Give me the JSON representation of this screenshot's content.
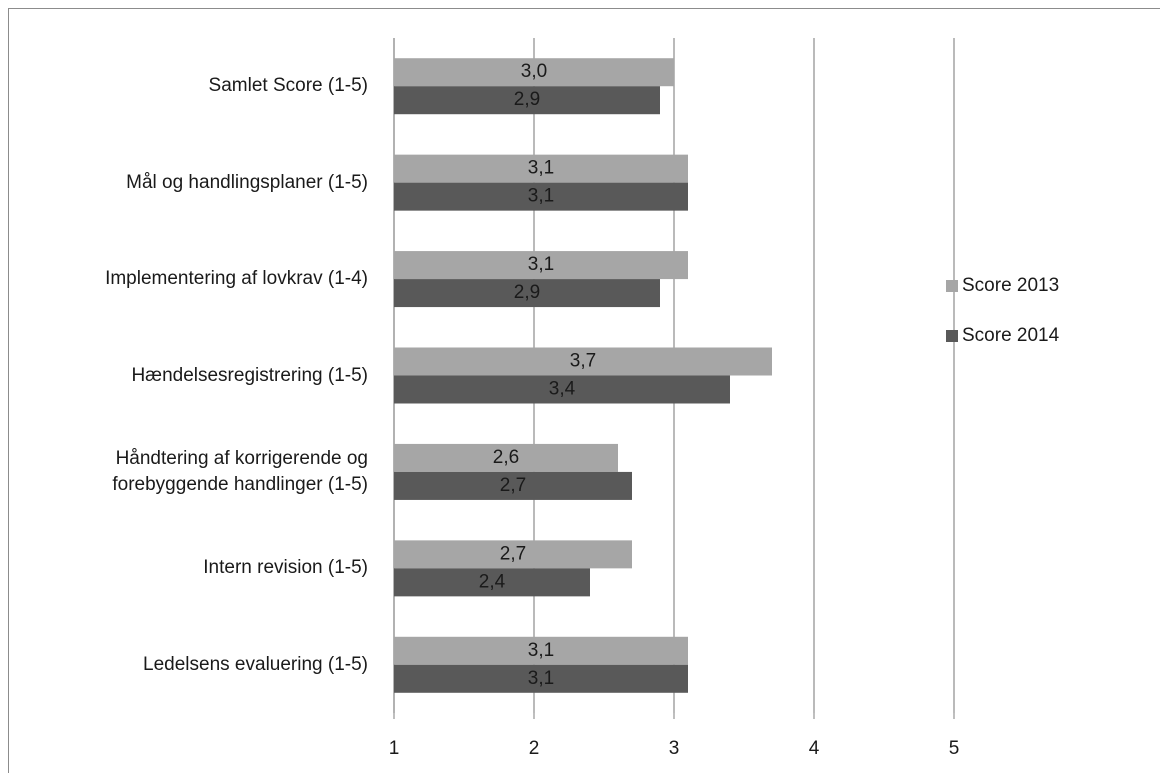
{
  "chart_data": {
    "type": "bar",
    "orientation": "horizontal",
    "categories": [
      "Samlet Score (1-5)",
      "Mål og handlingsplaner (1-5)",
      "Implementering af lovkrav (1-4)",
      "Hændelsesregistrering (1-5)",
      "Håndtering af korrigerende og forebyggende handlinger (1-5)",
      "Intern revision (1-5)",
      "Ledelsens evaluering (1-5)"
    ],
    "series": [
      {
        "name": "Score 2013",
        "color": "#a6a6a6",
        "values": [
          3.0,
          3.1,
          3.1,
          3.7,
          2.6,
          2.7,
          3.1
        ],
        "value_labels": [
          "3,0",
          "3,1",
          "3,1",
          "3,7",
          "2,6",
          "2,7",
          "3,1"
        ]
      },
      {
        "name": "Score 2014",
        "color": "#595959",
        "values": [
          2.9,
          3.1,
          2.9,
          3.4,
          2.7,
          2.4,
          3.1
        ],
        "value_labels": [
          "2,9",
          "3,1",
          "2,9",
          "3,4",
          "2,7",
          "2,4",
          "3,1"
        ]
      }
    ],
    "xlim": [
      1,
      5
    ],
    "xticks": [
      1,
      2,
      3,
      4,
      5
    ],
    "grid": true,
    "legend": "right"
  }
}
